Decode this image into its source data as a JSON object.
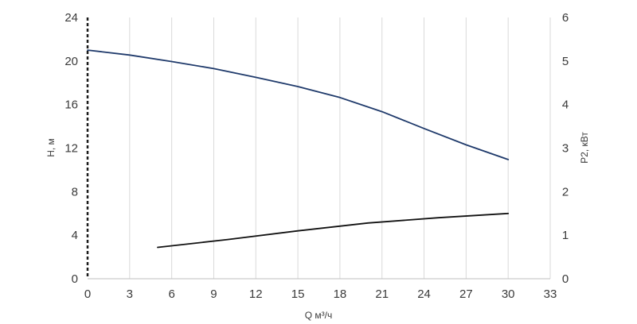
{
  "chart_data": {
    "type": "line",
    "xlabel": "Q м³/ч",
    "ylabel_left": "H, м",
    "ylabel_right": "P2, кВт",
    "xlim": [
      0,
      33
    ],
    "ylim_left": [
      0,
      24
    ],
    "ylim_right": [
      0,
      6
    ],
    "x_ticks": [
      0,
      3,
      6,
      9,
      12,
      15,
      18,
      21,
      24,
      27,
      30,
      33
    ],
    "y_left_ticks": [
      0,
      4,
      8,
      12,
      16,
      20,
      24
    ],
    "y_right_ticks": [
      0,
      1,
      2,
      3,
      4,
      5,
      6
    ],
    "grid": true,
    "series": [
      {
        "axis": "left",
        "color": "#1f3a6b",
        "x": [
          0,
          3,
          6,
          9,
          12,
          15,
          18,
          21,
          24,
          27,
          30
        ],
        "y": [
          21.0,
          20.55,
          19.95,
          19.3,
          18.5,
          17.65,
          16.65,
          15.35,
          13.8,
          12.3,
          10.95
        ]
      },
      {
        "axis": "right",
        "color": "#111111",
        "x": [
          5,
          10,
          15,
          20,
          25,
          30
        ],
        "y": [
          0.72,
          0.9,
          1.1,
          1.28,
          1.4,
          1.5
        ]
      }
    ]
  }
}
